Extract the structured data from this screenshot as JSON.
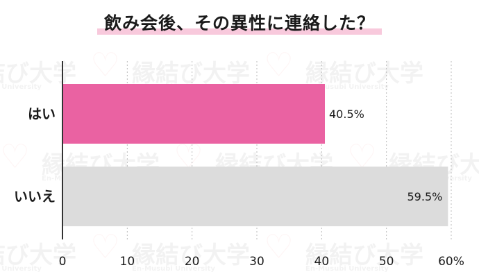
{
  "watermark": {
    "jp": "縁結び大学",
    "en": "En-Musubi University"
  },
  "colors": {
    "yes": "#ea62a2",
    "no": "#dcdcdc",
    "axis": "#333333",
    "grid": "#bbbbbb"
  },
  "chart_data": {
    "type": "bar",
    "orientation": "horizontal",
    "title": "飲み会後、その異性に連絡した？",
    "categories": [
      "はい",
      "いいえ"
    ],
    "values": [
      40.5,
      59.5
    ],
    "value_labels": [
      "40.5%",
      "59.5%"
    ],
    "xlim": [
      0,
      60
    ],
    "xticks": [
      0,
      10,
      20,
      30,
      40,
      50,
      60
    ],
    "xtick_labels": [
      "0",
      "10",
      "20",
      "30",
      "40",
      "50",
      "60%"
    ],
    "grid": "vertical dotted",
    "legend": "none"
  }
}
